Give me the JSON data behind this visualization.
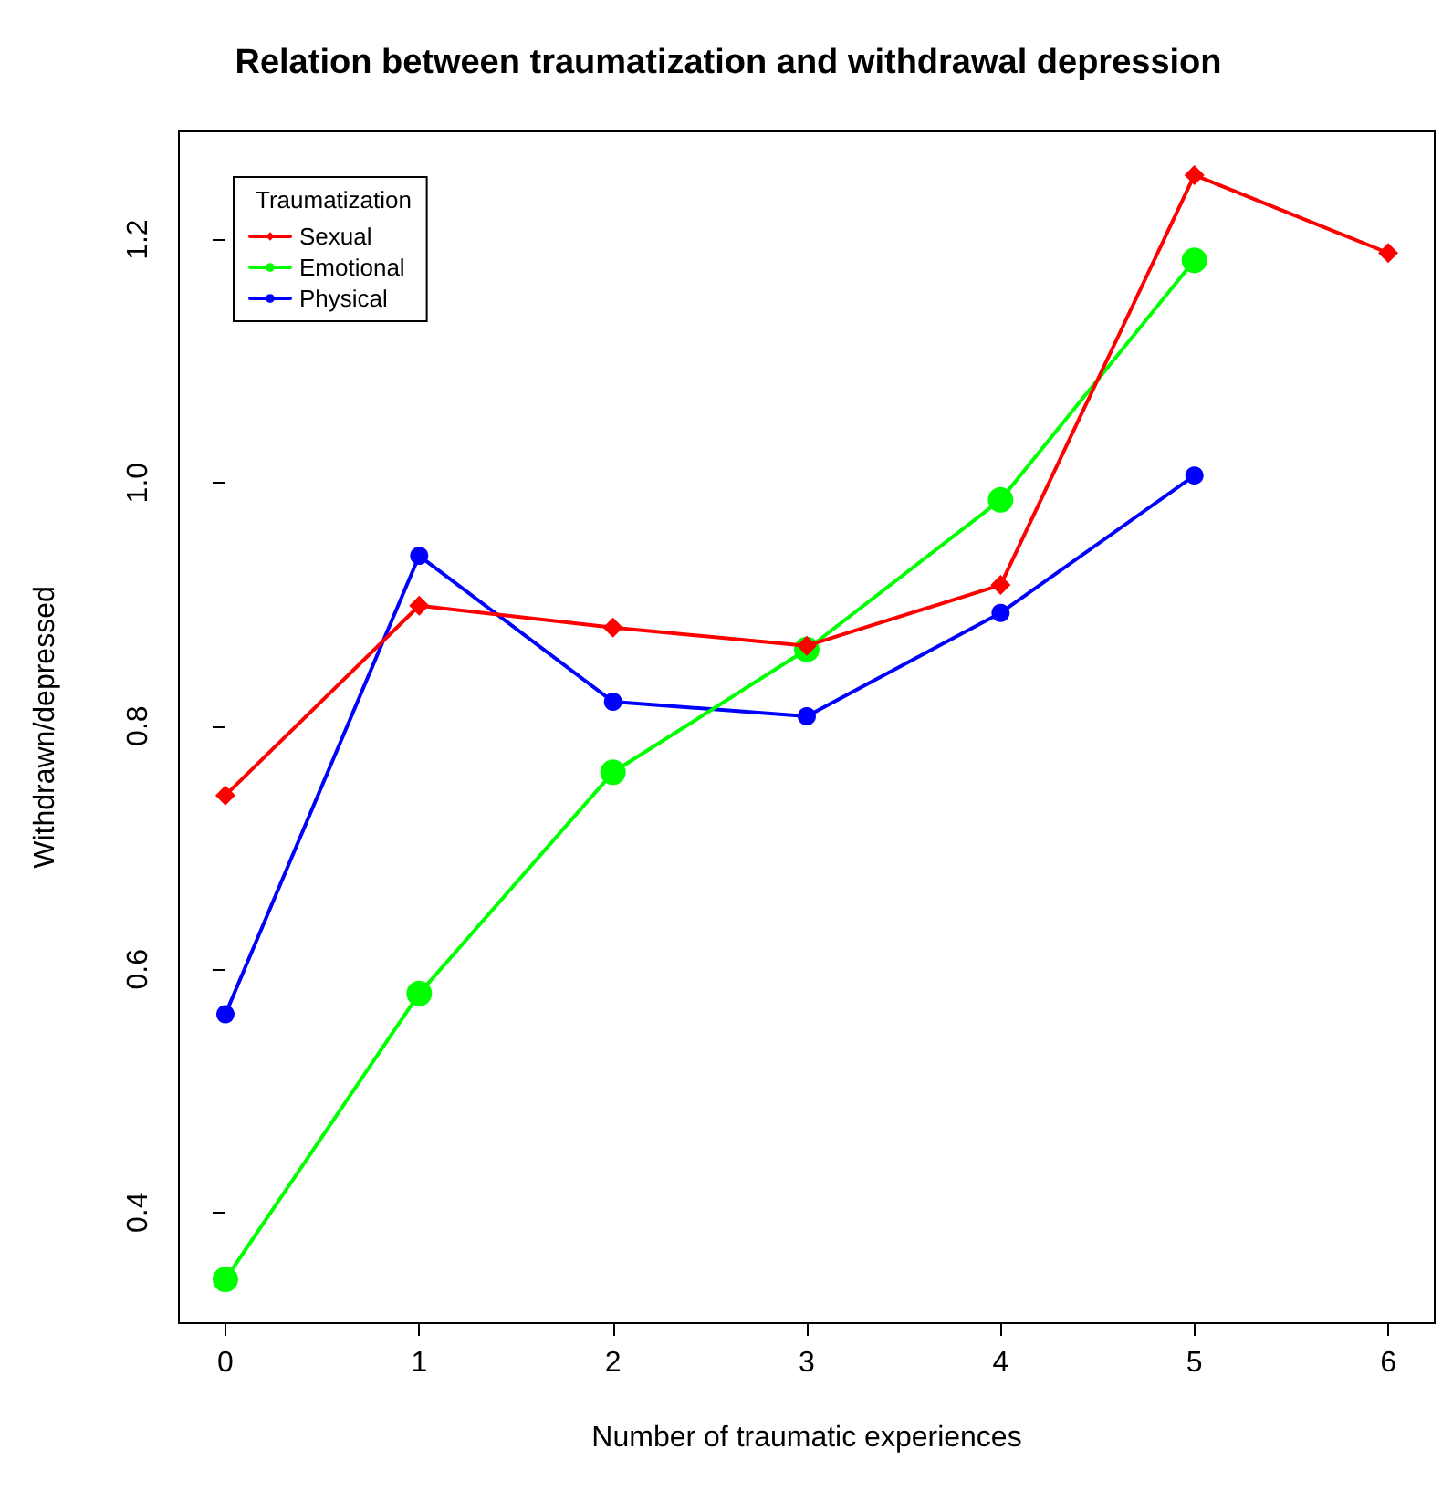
{
  "chart_data": {
    "type": "line",
    "title": "Relation between traumatization and withdrawal depression",
    "xlabel": "Number of traumatic experiences",
    "ylabel": "Withdrawn/depressed",
    "legend_title": "Traumatization",
    "legend": "top left",
    "grid": false,
    "x": [
      0,
      1,
      2,
      3,
      4,
      5,
      6
    ],
    "xlim": [
      -0.24,
      6.24
    ],
    "xticks": [
      0,
      1,
      2,
      3,
      4,
      5,
      6
    ],
    "ylim": [
      0.309,
      1.289
    ],
    "yticks": [
      0.4,
      0.6,
      0.8,
      {
        "value": 1,
        "label": "1.0"
      },
      1.2
    ],
    "series": [
      {
        "name": "Sexual",
        "color": "#ff0000",
        "marker": "diamond",
        "values": [
          0.743,
          0.899,
          0.881,
          0.866,
          0.916,
          1.253,
          1.189
        ]
      },
      {
        "name": "Emotional",
        "color": "#00ff00",
        "marker": "circle",
        "values": [
          0.345,
          0.58,
          0.762,
          0.863,
          0.986,
          1.183,
          null
        ]
      },
      {
        "name": "Physical",
        "color": "#0000ff",
        "marker": "circle",
        "values": [
          0.563,
          0.94,
          0.82,
          0.808,
          0.893,
          1.006,
          null
        ]
      }
    ]
  }
}
